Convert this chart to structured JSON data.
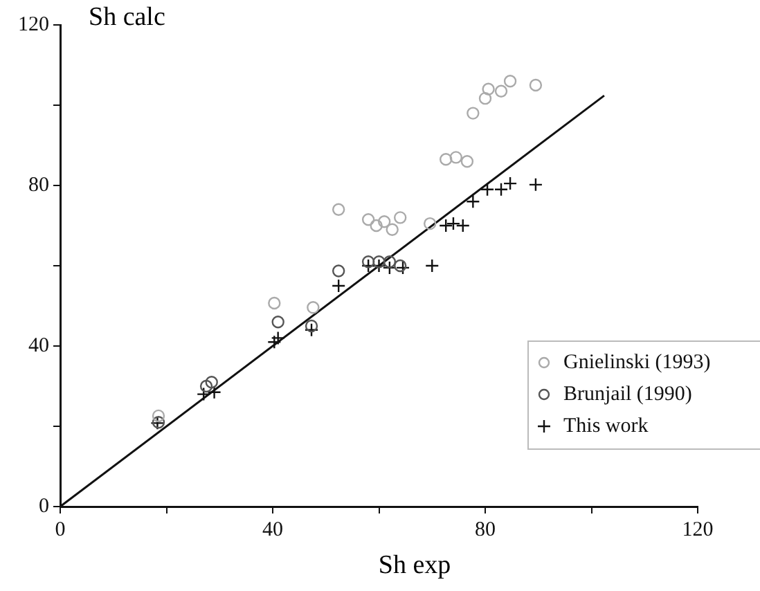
{
  "chart_data": {
    "type": "scatter",
    "xlabel": "Sh exp",
    "ylabel": "Sh calc",
    "xlim": [
      0,
      120
    ],
    "ylim": [
      0,
      120
    ],
    "xticks": [
      0,
      {
        "value": 20,
        "label": null
      },
      40,
      {
        "value": 60,
        "label": null
      },
      80,
      {
        "value": 100,
        "label": null
      },
      120
    ],
    "yticks": [
      0,
      {
        "value": 20,
        "label": null
      },
      40,
      {
        "value": 60,
        "label": null
      },
      80,
      {
        "value": 100,
        "label": null
      },
      120
    ],
    "grid": false,
    "legend": "bottom right",
    "series": [
      {
        "name": "Gnielinski (1993)",
        "color": "#aaaaaa",
        "marker": "circle",
        "x": [
          18.5,
          40.3,
          47.6,
          52.4,
          58,
          59.5,
          61,
          62.5,
          64,
          69.6,
          72.6,
          74.5,
          76.6,
          77.7,
          80,
          80.6,
          83,
          84.7,
          89.5
        ],
        "values": [
          22.6,
          50.7,
          49.6,
          74,
          71.5,
          70,
          71,
          69,
          72,
          70.5,
          86.5,
          87,
          86,
          98,
          101.7,
          104,
          103.5,
          106,
          105
        ]
      },
      {
        "name": "Brunjail (1990)",
        "color": "#555555",
        "marker": "circle",
        "x": [
          18.5,
          27.5,
          28.5,
          41,
          47.3,
          52.4,
          58,
          60,
          62,
          64
        ],
        "values": [
          21,
          30,
          31,
          46,
          45,
          58.7,
          61,
          61,
          61,
          60
        ]
      },
      {
        "name": "This work",
        "color": "#111111",
        "marker": "cross",
        "x": [
          18.3,
          27,
          28,
          29,
          40.3,
          41,
          47.3,
          52.4,
          58,
          60,
          62,
          64.5,
          70,
          72.6,
          74,
          75.8,
          77.7,
          80.4,
          83,
          84.7,
          89.5
        ],
        "values": [
          20.8,
          28,
          null,
          28.5,
          41,
          42,
          44,
          55,
          60,
          60,
          59.5,
          59.5,
          60,
          70,
          70.5,
          70,
          76,
          79,
          79,
          80.5,
          80.2
        ]
      },
      {
        "type": "line",
        "color": "#111111",
        "marker": "none",
        "x": [
          0,
          102.4
        ],
        "values": [
          0,
          102.4
        ]
      }
    ]
  }
}
